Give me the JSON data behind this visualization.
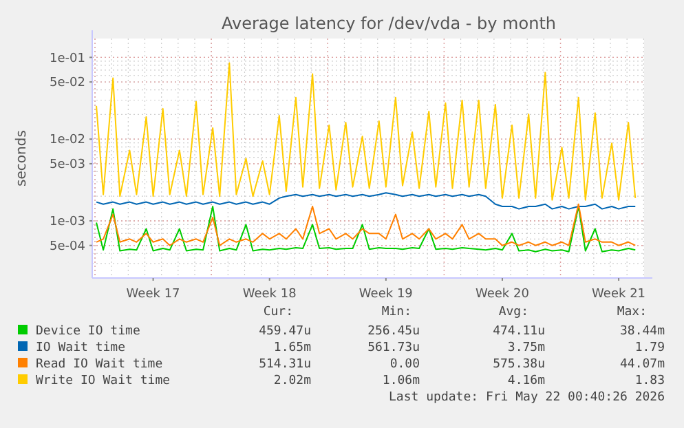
{
  "chart_data": {
    "type": "line",
    "title": "Average latency for /dev/vda - by month",
    "ylabel": "seconds",
    "log": "y",
    "grid": true,
    "legend": "bottom",
    "marker": "none",
    "line_style": "solid",
    "xlim": [
      "2026-04-18T20:00",
      "2026-05-22T00:40"
    ],
    "xticks": [
      {
        "value": "2026-04-22T12:00",
        "label": "Week 17"
      },
      {
        "value": "2026-04-29T12:00",
        "label": "Week 18"
      },
      {
        "value": "2026-05-06T12:00",
        "label": "Week 19"
      },
      {
        "value": "2026-05-13T12:00",
        "label": "Week 20"
      },
      {
        "value": "2026-05-20T12:00",
        "label": "Week 21"
      }
    ],
    "ylim": [
      0.0002,
      0.17
    ],
    "yticks": [
      {
        "value": 0.0005,
        "label": "5e-04"
      },
      {
        "value": 0.001,
        "label": "1e-03"
      },
      {
        "value": 0.005,
        "label": "5e-03"
      },
      {
        "value": 0.01,
        "label": "1e-02"
      },
      {
        "value": 0.05,
        "label": "5e-02"
      },
      {
        "value": 0.1,
        "label": "1e-01"
      }
    ],
    "x": [
      "2026-04-19T02:00",
      "2026-04-19T12:00",
      "2026-04-20T02:00",
      "2026-04-20T12:00",
      "2026-04-21T02:00",
      "2026-04-21T12:00",
      "2026-04-22T02:00",
      "2026-04-22T12:00",
      "2026-04-23T02:00",
      "2026-04-23T12:00",
      "2026-04-24T02:00",
      "2026-04-24T12:00",
      "2026-04-25T02:00",
      "2026-04-25T12:00",
      "2026-04-26T02:00",
      "2026-04-26T12:00",
      "2026-04-27T02:00",
      "2026-04-27T12:00",
      "2026-04-28T02:00",
      "2026-04-28T12:00",
      "2026-04-29T02:00",
      "2026-04-29T12:00",
      "2026-04-30T02:00",
      "2026-04-30T12:00",
      "2026-05-01T02:00",
      "2026-05-01T12:00",
      "2026-05-02T02:00",
      "2026-05-02T12:00",
      "2026-05-03T02:00",
      "2026-05-03T12:00",
      "2026-05-04T02:00",
      "2026-05-04T12:00",
      "2026-05-05T02:00",
      "2026-05-05T12:00",
      "2026-05-06T02:00",
      "2026-05-06T12:00",
      "2026-05-07T02:00",
      "2026-05-07T12:00",
      "2026-05-08T02:00",
      "2026-05-08T12:00",
      "2026-05-09T02:00",
      "2026-05-09T12:00",
      "2026-05-10T02:00",
      "2026-05-10T12:00",
      "2026-05-11T02:00",
      "2026-05-11T12:00",
      "2026-05-12T02:00",
      "2026-05-12T12:00",
      "2026-05-13T02:00",
      "2026-05-13T12:00",
      "2026-05-14T02:00",
      "2026-05-14T12:00",
      "2026-05-15T02:00",
      "2026-05-15T12:00",
      "2026-05-16T02:00",
      "2026-05-16T12:00",
      "2026-05-17T02:00",
      "2026-05-17T12:00",
      "2026-05-18T02:00",
      "2026-05-18T12:00",
      "2026-05-19T02:00",
      "2026-05-19T12:00",
      "2026-05-20T02:00",
      "2026-05-20T12:00",
      "2026-05-21T02:00",
      "2026-05-21T12:00"
    ],
    "series": [
      {
        "name": "Device IO time",
        "color": "#00cc00",
        "values": [
          0.00095,
          0.00044,
          0.0014,
          0.00043,
          0.00045,
          0.00044,
          0.0008,
          0.00043,
          0.00046,
          0.00044,
          0.0008,
          0.00043,
          0.00045,
          0.00044,
          0.0015,
          0.00043,
          0.00046,
          0.00044,
          0.0009,
          0.00043,
          0.00045,
          0.00044,
          0.00046,
          0.00045,
          0.00047,
          0.00046,
          0.0009,
          0.00046,
          0.00047,
          0.00045,
          0.00046,
          0.00046,
          0.0009,
          0.00045,
          0.00047,
          0.00046,
          0.00046,
          0.00045,
          0.00047,
          0.00046,
          0.0008,
          0.00045,
          0.00046,
          0.00045,
          0.00047,
          0.00046,
          0.00045,
          0.00044,
          0.00046,
          0.00044,
          0.0007,
          0.00043,
          0.00044,
          0.00042,
          0.00045,
          0.00043,
          0.00044,
          0.00042,
          0.0015,
          0.00043,
          0.0008,
          0.00042,
          0.00044,
          0.00043,
          0.00046,
          0.00044
        ]
      },
      {
        "name": "IO Wait time",
        "color": "#0066b3",
        "values": [
          0.0017,
          0.0016,
          0.0017,
          0.0016,
          0.0017,
          0.0016,
          0.0017,
          0.0016,
          0.0017,
          0.0016,
          0.0017,
          0.0016,
          0.0017,
          0.0016,
          0.0017,
          0.0016,
          0.0017,
          0.0016,
          0.0017,
          0.0016,
          0.0017,
          0.0016,
          0.0019,
          0.002,
          0.0021,
          0.002,
          0.0021,
          0.002,
          0.0021,
          0.002,
          0.0021,
          0.002,
          0.0021,
          0.002,
          0.0021,
          0.0022,
          0.0021,
          0.002,
          0.0021,
          0.002,
          0.0021,
          0.002,
          0.0021,
          0.002,
          0.0021,
          0.002,
          0.0021,
          0.002,
          0.0016,
          0.0015,
          0.0015,
          0.0014,
          0.0015,
          0.0015,
          0.0016,
          0.0014,
          0.0015,
          0.0014,
          0.0015,
          0.0015,
          0.0016,
          0.0014,
          0.0015,
          0.0014,
          0.0015,
          0.0015
        ]
      },
      {
        "name": "Read IO Wait time",
        "color": "#ff8000",
        "values": [
          0.00055,
          0.0006,
          0.0012,
          0.00055,
          0.0006,
          0.00055,
          0.0007,
          0.00055,
          0.0006,
          0.0005,
          0.0006,
          0.00055,
          0.0006,
          0.00055,
          0.0011,
          0.0005,
          0.0006,
          0.00055,
          0.0006,
          0.00055,
          0.0007,
          0.0006,
          0.0007,
          0.0006,
          0.0008,
          0.0006,
          0.0015,
          0.0007,
          0.0008,
          0.0006,
          0.0007,
          0.0006,
          0.0008,
          0.0007,
          0.0007,
          0.0006,
          0.0012,
          0.0006,
          0.0007,
          0.0006,
          0.0008,
          0.0006,
          0.0007,
          0.0006,
          0.0009,
          0.0006,
          0.0007,
          0.0006,
          0.0006,
          0.0005,
          0.00055,
          0.0005,
          0.00055,
          0.0005,
          0.00055,
          0.0005,
          0.00055,
          0.0005,
          0.0016,
          0.00055,
          0.0006,
          0.00055,
          0.00055,
          0.0005,
          0.00055,
          0.0005
        ]
      },
      {
        "name": "Write IO Wait time",
        "color": "#ffcc00",
        "values": [
          0.0255,
          0.0021,
          0.0557,
          0.002,
          0.0073,
          0.0021,
          0.0187,
          0.002,
          0.0236,
          0.0021,
          0.0073,
          0.002,
          0.0287,
          0.0021,
          0.0137,
          0.002,
          0.0855,
          0.0021,
          0.0058,
          0.002,
          0.0054,
          0.0021,
          0.0194,
          0.0023,
          0.0322,
          0.0026,
          0.0627,
          0.0025,
          0.0148,
          0.0024,
          0.016,
          0.0026,
          0.0108,
          0.0025,
          0.0166,
          0.0026,
          0.0322,
          0.0027,
          0.0122,
          0.0025,
          0.0218,
          0.0026,
          0.0276,
          0.0025,
          0.0299,
          0.0026,
          0.0299,
          0.0025,
          0.0265,
          0.0019,
          0.0148,
          0.0019,
          0.0202,
          0.0019,
          0.0651,
          0.0018,
          0.0079,
          0.0019,
          0.0322,
          0.0018,
          0.0209,
          0.0019,
          0.0089,
          0.0018,
          0.016,
          0.0019
        ]
      }
    ],
    "annotations": [
      "Cur:",
      "Min:",
      "Avg:",
      "Max:",
      "459.47u",
      "256.45u",
      "474.11u",
      "38.44m",
      "1.65m",
      "561.73u",
      "3.75m",
      "1.79",
      "514.31u",
      "0.00",
      "575.38u",
      "44.07m",
      "2.02m",
      "1.06m",
      "4.16m",
      "1.83",
      "Last update: Fri May 22 00:40:26 2026"
    ]
  }
}
